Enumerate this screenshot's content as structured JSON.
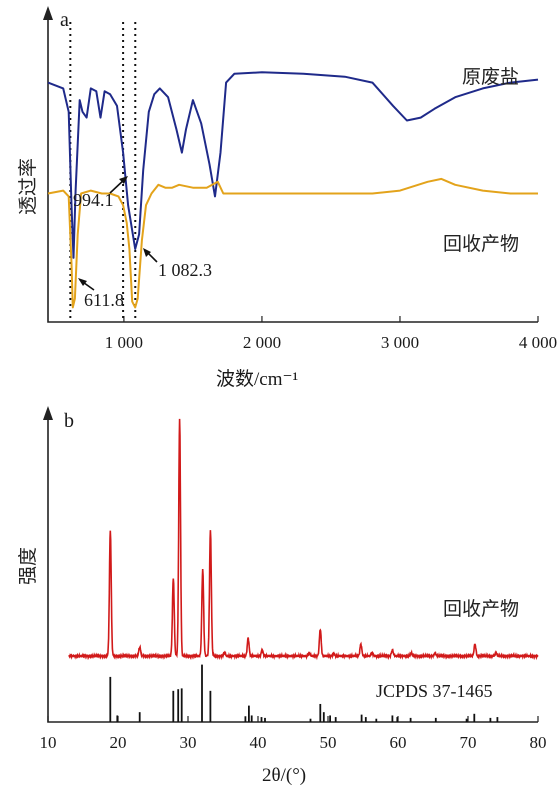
{
  "chart_data": [
    {
      "panel": "a",
      "type": "line",
      "ylabel": "透过率",
      "xlabel": "波数/cm⁻¹",
      "xlim": [
        450,
        4000
      ],
      "xticks": [
        "1 000",
        "2 000",
        "3 000",
        "4 000"
      ],
      "xtick_values": [
        1000,
        2000,
        3000,
        4000
      ],
      "series": [
        {
          "name": "原废盐",
          "color": "#1f2a8a",
          "points": [
            [
              450,
              0.82
            ],
            [
              560,
              0.8
            ],
            [
              600,
              0.72
            ],
            [
              620,
              0.4
            ],
            [
              635,
              0.22
            ],
            [
              650,
              0.45
            ],
            [
              680,
              0.76
            ],
            [
              700,
              0.72
            ],
            [
              730,
              0.7
            ],
            [
              760,
              0.8
            ],
            [
              800,
              0.79
            ],
            [
              830,
              0.7
            ],
            [
              860,
              0.79
            ],
            [
              900,
              0.78
            ],
            [
              950,
              0.74
            ],
            [
              994,
              0.58
            ],
            [
              1030,
              0.4
            ],
            [
              1082,
              0.25
            ],
            [
              1110,
              0.3
            ],
            [
              1140,
              0.52
            ],
            [
              1180,
              0.72
            ],
            [
              1220,
              0.78
            ],
            [
              1260,
              0.8
            ],
            [
              1320,
              0.77
            ],
            [
              1380,
              0.66
            ],
            [
              1420,
              0.58
            ],
            [
              1450,
              0.66
            ],
            [
              1500,
              0.76
            ],
            [
              1560,
              0.68
            ],
            [
              1620,
              0.54
            ],
            [
              1660,
              0.43
            ],
            [
              1700,
              0.58
            ],
            [
              1740,
              0.82
            ],
            [
              1800,
              0.85
            ],
            [
              2000,
              0.855
            ],
            [
              2300,
              0.85
            ],
            [
              2600,
              0.84
            ],
            [
              2800,
              0.82
            ],
            [
              2950,
              0.74
            ],
            [
              3050,
              0.69
            ],
            [
              3150,
              0.7
            ],
            [
              3250,
              0.73
            ],
            [
              3400,
              0.77
            ],
            [
              3600,
              0.8
            ],
            [
              3800,
              0.82
            ],
            [
              4000,
              0.83
            ]
          ]
        },
        {
          "name": "回收产物",
          "color": "#e3a31b",
          "points": [
            [
              450,
              0.44
            ],
            [
              560,
              0.45
            ],
            [
              600,
              0.43
            ],
            [
              620,
              0.2
            ],
            [
              630,
              0.05
            ],
            [
              645,
              0.08
            ],
            [
              665,
              0.3
            ],
            [
              690,
              0.44
            ],
            [
              760,
              0.45
            ],
            [
              840,
              0.44
            ],
            [
              900,
              0.44
            ],
            [
              960,
              0.43
            ],
            [
              994,
              0.4
            ],
            [
              1020,
              0.34
            ],
            [
              1040,
              0.25
            ],
            [
              1060,
              0.07
            ],
            [
              1082,
              0.05
            ],
            [
              1100,
              0.08
            ],
            [
              1130,
              0.28
            ],
            [
              1160,
              0.4
            ],
            [
              1200,
              0.44
            ],
            [
              1250,
              0.47
            ],
            [
              1300,
              0.46
            ],
            [
              1350,
              0.46
            ],
            [
              1400,
              0.47
            ],
            [
              1500,
              0.46
            ],
            [
              1600,
              0.46
            ],
            [
              1680,
              0.48
            ],
            [
              1720,
              0.44
            ],
            [
              1800,
              0.44
            ],
            [
              2000,
              0.44
            ],
            [
              2400,
              0.44
            ],
            [
              2800,
              0.44
            ],
            [
              3000,
              0.45
            ],
            [
              3200,
              0.48
            ],
            [
              3300,
              0.49
            ],
            [
              3400,
              0.47
            ],
            [
              3600,
              0.45
            ],
            [
              3800,
              0.44
            ],
            [
              4000,
              0.44
            ]
          ]
        }
      ],
      "markers": [
        611.8,
        994.1,
        1082.3
      ],
      "annotations": [
        "994.1",
        "611.8",
        "1 082.3"
      ]
    },
    {
      "panel": "b",
      "type": "line",
      "ylabel": "强度",
      "xlabel": "2θ/(°)",
      "xlim": [
        10,
        80
      ],
      "xticks": [
        "10",
        "20",
        "30",
        "40",
        "50",
        "60",
        "70",
        "80"
      ],
      "xtick_values": [
        10,
        20,
        30,
        40,
        50,
        60,
        70,
        80
      ],
      "series": [
        {
          "name": "回收产物",
          "color": "#d11a1a",
          "baseline": 0.02,
          "peaks": [
            [
              18.9,
              0.42
            ],
            [
              23.1,
              0.03
            ],
            [
              27.9,
              0.26
            ],
            [
              28.8,
              0.79
            ],
            [
              32.1,
              0.29
            ],
            [
              33.2,
              0.42
            ],
            [
              35.2,
              0.01
            ],
            [
              38.6,
              0.06
            ],
            [
              40.6,
              0.02
            ],
            [
              47.3,
              0.01
            ],
            [
              48.9,
              0.09
            ],
            [
              50.8,
              0.01
            ],
            [
              54.7,
              0.04
            ],
            [
              56.3,
              0.01
            ],
            [
              59.2,
              0.02
            ],
            [
              61.9,
              0.01
            ],
            [
              65.3,
              0.01
            ],
            [
              71.0,
              0.04
            ],
            [
              74.0,
              0.01
            ]
          ]
        },
        {
          "name": "JCPDS 37-1465",
          "color": "#111111",
          "sticks": [
            [
              18.9,
              0.55
            ],
            [
              19.9,
              0.08
            ],
            [
              23.1,
              0.12
            ],
            [
              27.9,
              0.38
            ],
            [
              28.6,
              0.4
            ],
            [
              29.1,
              0.41
            ],
            [
              32.0,
              0.7
            ],
            [
              33.2,
              0.38
            ],
            [
              38.2,
              0.07
            ],
            [
              38.7,
              0.2
            ],
            [
              39.1,
              0.08
            ],
            [
              40.5,
              0.06
            ],
            [
              41.0,
              0.05
            ],
            [
              47.5,
              0.04
            ],
            [
              48.9,
              0.22
            ],
            [
              49.4,
              0.12
            ],
            [
              50.3,
              0.08
            ],
            [
              51.1,
              0.06
            ],
            [
              54.8,
              0.09
            ],
            [
              55.4,
              0.06
            ],
            [
              56.9,
              0.04
            ],
            [
              59.2,
              0.08
            ],
            [
              59.9,
              0.06
            ],
            [
              61.8,
              0.05
            ],
            [
              65.4,
              0.05
            ],
            [
              69.8,
              0.04
            ],
            [
              70.9,
              0.1
            ],
            [
              73.2,
              0.05
            ],
            [
              74.2,
              0.06
            ]
          ]
        }
      ],
      "annotations": [
        "JCPDS 37-1465"
      ]
    }
  ]
}
